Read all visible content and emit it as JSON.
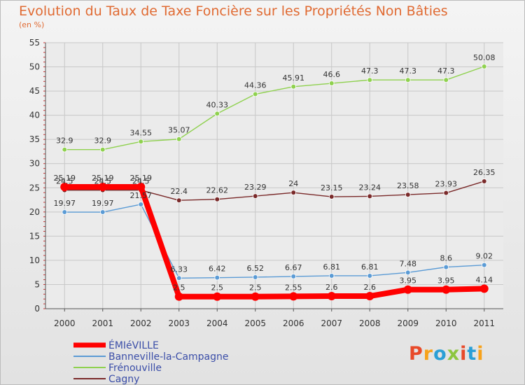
{
  "header": {
    "title": "Evolution du Taux de Taxe Foncière sur les Propriétés Non Bâties",
    "unit": "(en %)"
  },
  "logo": {
    "text": "Proxiti",
    "colors": [
      "#e84a2a",
      "#f7a21b",
      "#2a9fd6",
      "#8cc63f",
      "#e84a2a",
      "#2a9fd6",
      "#f7a21b"
    ]
  },
  "colors": {
    "title": "#e06a32",
    "grid": "#c8c8c8",
    "axis": "#555555"
  },
  "chart_data": {
    "type": "line",
    "title": "Evolution du Taux de Taxe Foncière sur les Propriétés Non Bâties",
    "ylabel": "(en %)",
    "xlabel": "",
    "categories": [
      "2000",
      "2001",
      "2002",
      "2003",
      "2004",
      "2005",
      "2006",
      "2007",
      "2008",
      "2009",
      "2010",
      "2011"
    ],
    "ylim": [
      0,
      55
    ],
    "yticks": [
      0,
      5,
      10,
      15,
      20,
      25,
      30,
      35,
      40,
      45,
      50,
      55
    ],
    "grid": true,
    "legend_position": "bottom-left",
    "series": [
      {
        "name": "ÉMIéVILLE",
        "color": "#ff0000",
        "values": [
          25.19,
          25.19,
          25.19,
          2.5,
          2.5,
          2.5,
          2.55,
          2.6,
          2.6,
          3.95,
          3.95,
          4.14
        ],
        "labels": [
          "25.19",
          "25.19",
          "25.19",
          "2.5",
          "2.5",
          "2.5",
          "2.55",
          "2.6",
          "2.6",
          "3.95",
          "3.95",
          "4.14"
        ]
      },
      {
        "name": "Banneville-la-Campagne",
        "color": "#5b9bd5",
        "values": [
          19.97,
          19.97,
          21.57,
          6.33,
          6.42,
          6.52,
          6.67,
          6.81,
          6.81,
          7.48,
          8.6,
          9.02
        ],
        "labels": [
          "19.97",
          "19.97",
          "21.57",
          "6.33",
          "6.42",
          "6.52",
          "6.67",
          "6.81",
          "6.81",
          "7.48",
          "8.6",
          "9.02"
        ]
      },
      {
        "name": "Frénouville",
        "color": "#8fd14f",
        "values": [
          32.9,
          32.9,
          34.55,
          35.07,
          40.33,
          44.36,
          45.91,
          46.6,
          47.3,
          47.3,
          47.3,
          50.08
        ],
        "labels": [
          "32.9",
          "32.9",
          "34.55",
          "35.07",
          "40.33",
          "44.36",
          "45.91",
          "46.6",
          "47.3",
          "47.3",
          "47.3",
          "50.08"
        ]
      },
      {
        "name": "Cagny",
        "color": "#7a2a2a",
        "values": [
          24.5,
          24.5,
          24.5,
          22.4,
          22.62,
          23.29,
          24,
          23.15,
          23.24,
          23.58,
          23.93,
          26.35
        ],
        "labels": [
          "24.5",
          "24.5",
          "24.5",
          "22.4",
          "22.62",
          "23.29",
          "24",
          "23.15",
          "23.24",
          "23.58",
          "23.93",
          "26.35"
        ]
      }
    ]
  }
}
